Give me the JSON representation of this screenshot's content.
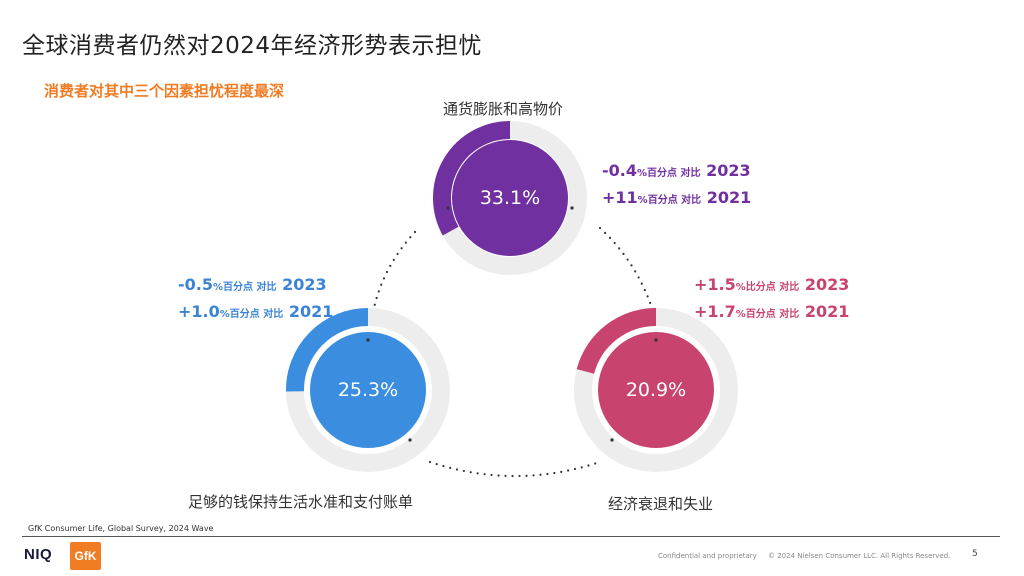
{
  "slide": {
    "title": "全球消费者仍然对2024年经济形势表示担忧",
    "subtitle": "消费者对其中三个因素担忧程度最深",
    "page_number": "5"
  },
  "factors": [
    {
      "name": "通货膨胀和高物价",
      "value_text": "33.1%",
      "value": 33.1,
      "color": "#7030a0",
      "changes": [
        {
          "delta": "-0.4",
          "unit": "%百分点 对比",
          "year": "2023"
        },
        {
          "delta": "+11",
          "unit": "%百分点 对比",
          "year": "2021"
        }
      ]
    },
    {
      "name": "足够的钱保持生活水准和支付账单",
      "value_text": "25.3%",
      "value": 25.3,
      "color": "#3b8de0",
      "changes": [
        {
          "delta": "-0.5",
          "unit": "%百分点 对比",
          "year": "2023"
        },
        {
          "delta": "+1.0",
          "unit": "%百分点 对比",
          "year": "2021"
        }
      ]
    },
    {
      "name": "经济衰退和失业",
      "value_text": "20.9%",
      "value": 20.9,
      "color": "#c8436d",
      "changes": [
        {
          "delta": "+1.5",
          "unit": "%比分点 对比",
          "year": "2023"
        },
        {
          "delta": "+1.7",
          "unit": "%百分点 对比",
          "year": "2021"
        }
      ]
    }
  ],
  "footer": {
    "source": "GfK Consumer Life, Global Survey, 2024 Wave",
    "logo_niq": "NIQ",
    "logo_gfk": "GfK",
    "confidential": "Confidential and proprietary",
    "copyright": "© 2024 Nielsen Consumer LLC. All Rights Reserved."
  },
  "colors": {
    "accent_orange": "#f07c23",
    "track_gray": "#ededed"
  }
}
